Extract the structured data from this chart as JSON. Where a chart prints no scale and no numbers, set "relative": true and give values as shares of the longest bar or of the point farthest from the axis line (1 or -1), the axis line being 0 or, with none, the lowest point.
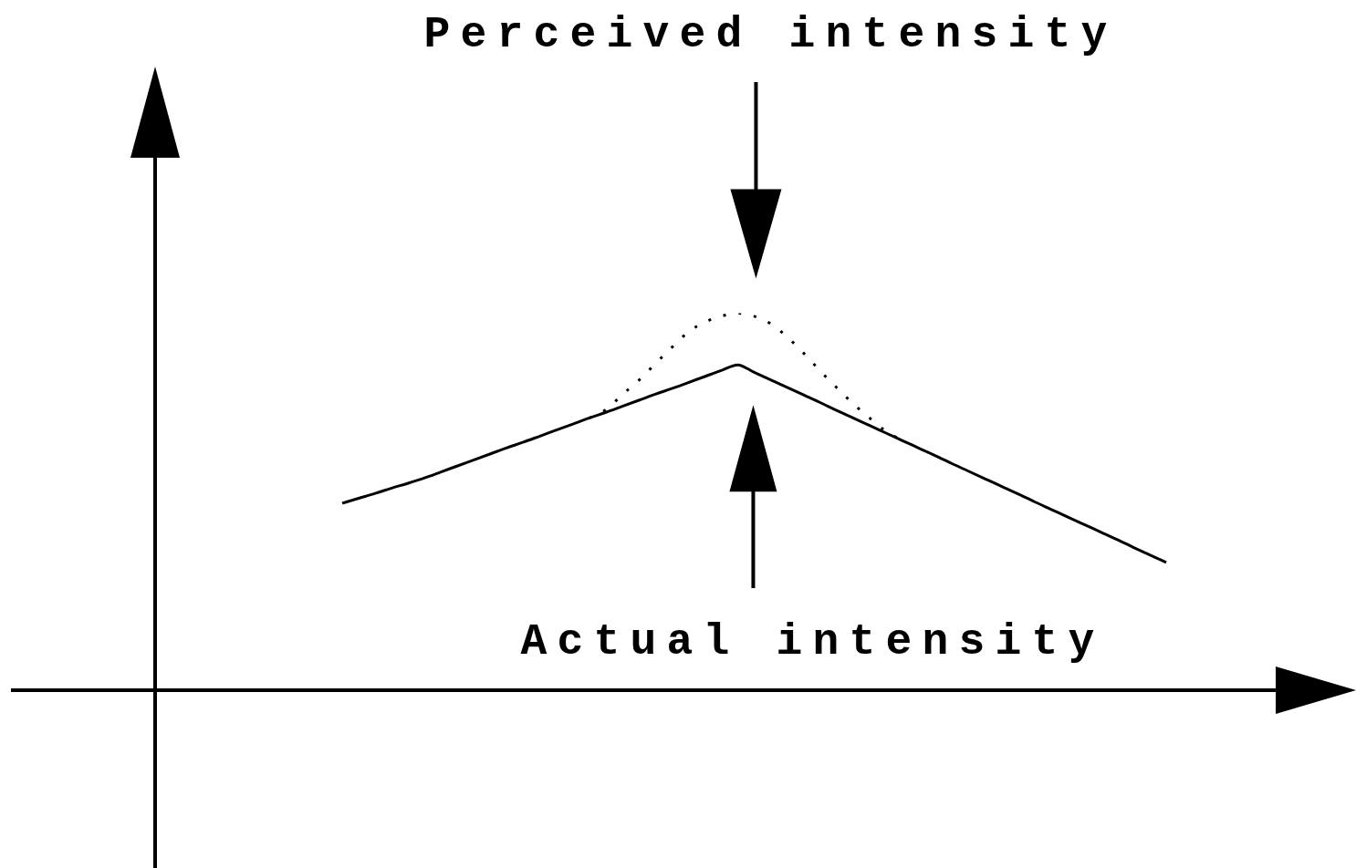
{
  "chart_data": {
    "type": "line",
    "relative": true,
    "marker": "none",
    "categories": [
      null,
      null,
      null,
      null,
      null,
      null,
      null,
      null,
      null,
      null,
      null,
      null,
      null,
      null,
      null,
      null,
      null,
      null,
      null,
      null,
      null,
      null,
      null,
      null,
      null,
      null,
      null,
      null,
      null,
      null,
      null,
      null,
      null,
      null,
      null,
      null,
      null,
      null,
      null,
      null,
      null,
      null,
      null,
      null,
      null,
      null,
      null,
      null,
      null,
      null,
      null
    ],
    "series": [
      {
        "color": "#000000",
        "line_style": "dotted",
        "values": [
          null,
          null,
          null,
          null,
          null,
          null,
          null,
          null,
          null,
          null,
          null,
          null,
          null,
          null,
          null,
          0.722,
          0.744,
          0.784,
          0.822,
          0.866,
          0.909,
          0.95,
          0.976,
          0.992,
          1,
          0.992,
          0.972,
          0.937,
          0.894,
          0.847,
          0.803,
          0.76,
          0.722,
          0.687,
          0.662,
          null,
          null,
          null,
          null,
          null,
          null,
          null,
          null,
          null,
          null,
          null,
          null,
          null,
          null,
          null,
          null
        ]
      },
      {
        "color": "#000000",
        "line_style": "solid",
        "values": [
          0.496,
          0.509,
          0.522,
          0.536,
          0.549,
          0.563,
          0.579,
          0.595,
          0.611,
          0.627,
          0.643,
          0.658,
          0.674,
          0.69,
          0.706,
          0.722,
          0.737,
          0.753,
          0.769,
          0.785,
          0.8,
          0.816,
          0.832,
          0.848,
          0.863,
          0.843,
          0.823,
          0.803,
          0.783,
          0.763,
          0.742,
          0.722,
          0.702,
          0.682,
          0.662,
          0.642,
          0.622,
          0.601,
          0.581,
          0.561,
          0.541,
          0.521,
          0.5,
          0.48,
          0.46,
          0.44,
          0.42,
          0.4,
          0.379,
          0.359,
          0.339
        ]
      }
    ],
    "annotations": [
      "Perceived intensity",
      "Actual intensity"
    ]
  }
}
